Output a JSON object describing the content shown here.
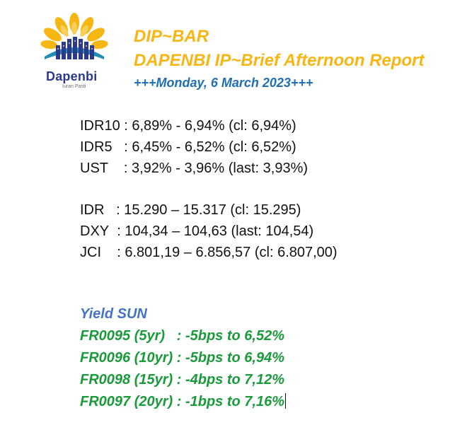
{
  "logo": {
    "name": "Dapenbi",
    "tagline": "Iuran Pasti",
    "colors": {
      "sun": "#f6b613",
      "bars": "#2d3a8c",
      "teal": "#1e8fb0"
    }
  },
  "header": {
    "title": "DIP~BAR",
    "subtitle": "DAPENBI IP~Brief Afternoon Report",
    "date": "+++Monday, 6 March 2023+++"
  },
  "rates_group_1": [
    {
      "label": "IDR10",
      "value": " : 6,89% - 6,94% (cl: 6,94%)"
    },
    {
      "label": "IDR5 ",
      "value": "  : 6,45% - 6,52% (cl: 6,52%)"
    },
    {
      "label": "UST  ",
      "value": "  : 3,92% - 3,96% (last: 3,93%)"
    }
  ],
  "rates_group_2": [
    {
      "label": "IDR  ",
      "value": " : 15.290 – 15.317 (cl: 15.295)"
    },
    {
      "label": "DXY",
      "value": "  : 104,34 – 104,63 (last: 104,54)"
    },
    {
      "label": "JCI  ",
      "value": "  : 6.801,19 – 6.856,57 (cl: 6.807,00)"
    }
  ],
  "yield": {
    "title": "Yield SUN",
    "rows": [
      {
        "text": "FR0095 (5yr)   : -5bps to 6,52%"
      },
      {
        "text": "FR0096 (10yr) : -5bps to 6,94%"
      },
      {
        "text": "FR0098 (15yr) : -4bps to 7,12%"
      },
      {
        "text": "FR0097 (20yr) : -1bps to 7,16%"
      }
    ]
  },
  "colors": {
    "header_title": "#f6b613",
    "header_date": "#1f6fb3",
    "yield_title": "#4472c4",
    "yield_rows": "#1a9a3a"
  }
}
